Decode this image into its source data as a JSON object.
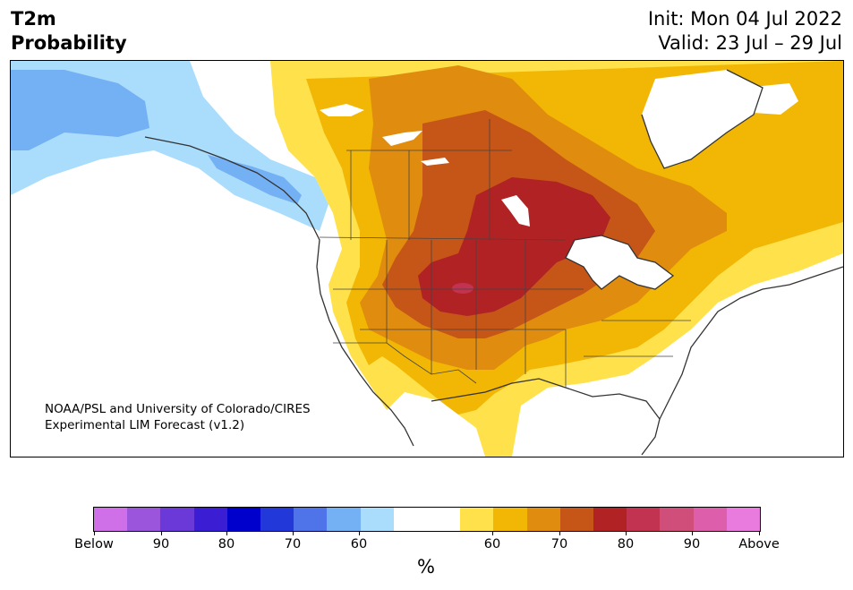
{
  "header": {
    "title_line1": "T2m",
    "title_line2": "Probability",
    "init": "Init: Mon 04 Jul 2022",
    "valid": "Valid: 23 Jul – 29 Jul"
  },
  "credit": {
    "line1": "NOAA/PSL and University of Colorado/CIRES",
    "line2": "Experimental LIM Forecast (v1.2)"
  },
  "colorbar": {
    "units": "%",
    "colors": [
      "#d070e8",
      "#9b55dc",
      "#6a39d8",
      "#3b1ed4",
      "#0000cc",
      "#2338d8",
      "#4f74ea",
      "#74b1f4",
      "#aadcfc",
      "#ffffff",
      "#ffffff",
      "#ffe14b",
      "#f2b705",
      "#e08c0e",
      "#c65518",
      "#b02224",
      "#c23352",
      "#cf4e7a",
      "#dd5fac",
      "#e97ade"
    ],
    "ticks": [
      "Below",
      "90",
      "80",
      "70",
      "60",
      "60",
      "70",
      "80",
      "90",
      "Above"
    ]
  },
  "map": {
    "fill_colors": {
      "blue_dark": "#74b1f4",
      "blue_light": "#aadcfc",
      "yellow": "#ffe14b",
      "gold": "#f2b705",
      "orange": "#e08c0e",
      "dark_orange": "#c65518",
      "red": "#b02224",
      "magenta": "#c23352"
    }
  }
}
